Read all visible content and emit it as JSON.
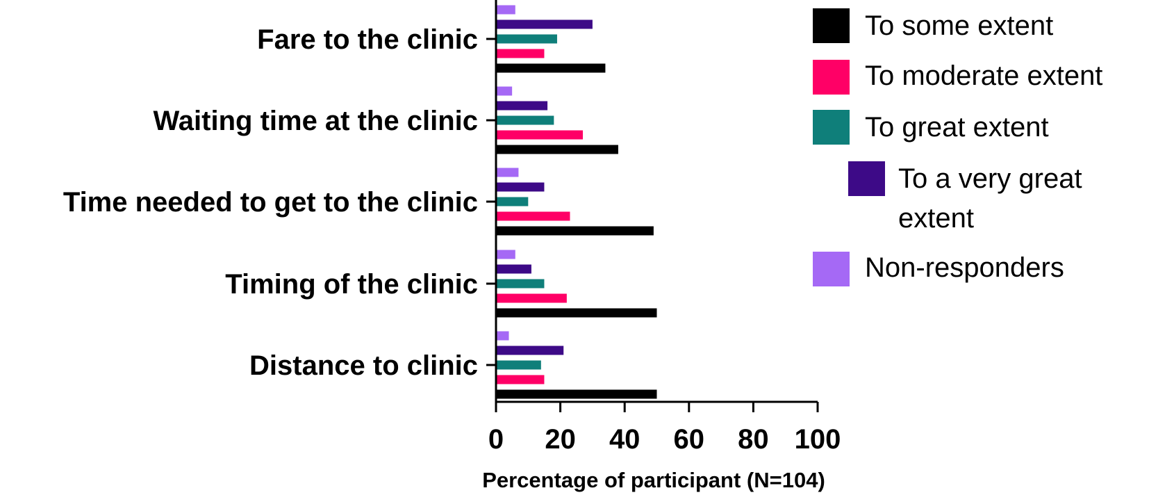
{
  "chart_data": {
    "type": "bar",
    "orientation": "horizontal",
    "categories": [
      "Fare to the clinic",
      "Waiting time at the clinic",
      "Time needed to get to the clinic",
      "Timing of the clinic",
      "Distance to clinic"
    ],
    "series": [
      {
        "name": "To some extent",
        "color": "#000000",
        "values": [
          34,
          38,
          49,
          50,
          50
        ]
      },
      {
        "name": "To moderate extent",
        "color": "#ff0066",
        "values": [
          15,
          27,
          23,
          22,
          15
        ]
      },
      {
        "name": "To great extent",
        "color": "#0f7f7a",
        "values": [
          19,
          18,
          10,
          15,
          14
        ]
      },
      {
        "name": "To a very great extent",
        "color": "#3d0a87",
        "values": [
          30,
          16,
          15,
          11,
          21
        ]
      },
      {
        "name": "Non-responders",
        "color": "#a569f5",
        "values": [
          6,
          5,
          7,
          6,
          4
        ]
      }
    ],
    "xlabel": "Percentage of participant  (N=104)",
    "xlim": [
      0,
      100
    ],
    "xticks": [
      "0",
      "20",
      "40",
      "60",
      "80",
      "100"
    ],
    "grid": false,
    "legend_position": "right"
  }
}
